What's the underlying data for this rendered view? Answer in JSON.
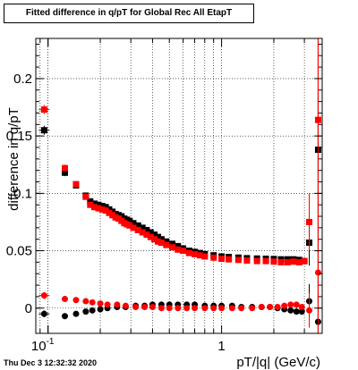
{
  "header": {
    "title": "Fitted difference in q/pT for Global Rec All EtapT"
  },
  "footer": {
    "date": "Thu Dec  3 12:32:32 2020"
  },
  "chart_data": {
    "type": "scatter",
    "title": "Fitted difference in q/pT for Global Rec All EtapT",
    "xlabel": "pT/|q| (GeV/c)",
    "ylabel": "difference in q/pT",
    "xscale": "log",
    "xlim": [
      0.085,
      3.8
    ],
    "ylim": [
      -0.022,
      0.235
    ],
    "x_ticks": [
      0.1,
      1
    ],
    "x_tick_labels": [
      "10^-1",
      "1"
    ],
    "y_ticks": [
      0,
      0.05,
      0.1,
      0.15,
      0.2
    ],
    "y_tick_labels": [
      "0",
      "0.05",
      "0.1",
      "0.15",
      "0.2"
    ],
    "grid": true,
    "colors": {
      "black_series": "#000000",
      "red_series": "#ff0000"
    },
    "series": [
      {
        "color": "#000000",
        "marker": "square",
        "x": [
          0.095,
          0.125,
          0.145,
          0.165,
          0.175,
          0.185,
          0.195,
          0.205,
          0.215,
          0.225,
          0.235,
          0.245,
          0.255,
          0.265,
          0.275,
          0.285,
          0.295,
          0.31,
          0.33,
          0.35,
          0.37,
          0.39,
          0.41,
          0.43,
          0.45,
          0.48,
          0.52,
          0.56,
          0.6,
          0.65,
          0.7,
          0.75,
          0.8,
          0.9,
          1.0,
          1.1,
          1.25,
          1.4,
          1.6,
          1.8,
          2.0,
          2.2,
          2.4,
          2.6,
          2.8,
          3.0,
          3.2,
          3.6
        ],
        "y": [
          0.155,
          0.118,
          0.107,
          0.098,
          0.093,
          0.091,
          0.09,
          0.089,
          0.088,
          0.086,
          0.084,
          0.082,
          0.081,
          0.08,
          0.078,
          0.077,
          0.076,
          0.074,
          0.072,
          0.07,
          0.068,
          0.066,
          0.064,
          0.062,
          0.06,
          0.058,
          0.056,
          0.054,
          0.052,
          0.05,
          0.049,
          0.048,
          0.047,
          0.046,
          0.045,
          0.0445,
          0.044,
          0.0435,
          0.0432,
          0.043,
          0.0428,
          0.0425,
          0.0425,
          0.0425,
          0.042,
          0.041,
          0.057,
          0.138
        ],
        "yerr": [
          0.004,
          0.003,
          0.002,
          0.002,
          0.001,
          0.001,
          0.001,
          0.001,
          0.001,
          0.001,
          0.001,
          0.001,
          0.001,
          0.001,
          0.001,
          0.001,
          0.001,
          0.001,
          0.001,
          0.001,
          0.001,
          0.001,
          0.001,
          0.001,
          0.001,
          0.001,
          0.001,
          0.001,
          0.001,
          0.001,
          0.001,
          0.001,
          0.001,
          0.001,
          0.001,
          0.001,
          0.001,
          0.001,
          0.001,
          0.001,
          0.001,
          0.001,
          0.001,
          0.001,
          0.002,
          0.003,
          0.02,
          0.2
        ]
      },
      {
        "color": "#ff0000",
        "marker": "square",
        "x": [
          0.095,
          0.125,
          0.145,
          0.165,
          0.175,
          0.185,
          0.195,
          0.205,
          0.215,
          0.225,
          0.235,
          0.245,
          0.255,
          0.265,
          0.275,
          0.285,
          0.295,
          0.31,
          0.33,
          0.35,
          0.37,
          0.39,
          0.41,
          0.43,
          0.45,
          0.48,
          0.52,
          0.56,
          0.6,
          0.65,
          0.7,
          0.75,
          0.8,
          0.9,
          1.0,
          1.1,
          1.25,
          1.4,
          1.6,
          1.8,
          2.0,
          2.2,
          2.4,
          2.6,
          2.8,
          3.0,
          3.2,
          3.6
        ],
        "y": [
          0.173,
          0.122,
          0.108,
          0.097,
          0.09,
          0.088,
          0.087,
          0.086,
          0.085,
          0.083,
          0.081,
          0.079,
          0.078,
          0.076,
          0.074,
          0.073,
          0.072,
          0.07,
          0.068,
          0.066,
          0.064,
          0.062,
          0.06,
          0.058,
          0.057,
          0.055,
          0.053,
          0.051,
          0.05,
          0.048,
          0.047,
          0.046,
          0.045,
          0.044,
          0.043,
          0.0425,
          0.042,
          0.0415,
          0.041,
          0.041,
          0.0405,
          0.04,
          0.04,
          0.0405,
          0.04,
          0.041,
          0.075,
          0.164
        ],
        "yerr": [
          0.004,
          0.003,
          0.002,
          0.002,
          0.001,
          0.001,
          0.001,
          0.001,
          0.001,
          0.001,
          0.001,
          0.001,
          0.001,
          0.001,
          0.001,
          0.001,
          0.001,
          0.001,
          0.001,
          0.001,
          0.001,
          0.001,
          0.001,
          0.001,
          0.001,
          0.001,
          0.001,
          0.001,
          0.001,
          0.001,
          0.001,
          0.001,
          0.001,
          0.001,
          0.001,
          0.001,
          0.001,
          0.001,
          0.001,
          0.001,
          0.001,
          0.001,
          0.001,
          0.001,
          0.002,
          0.003,
          0.025,
          0.2
        ]
      },
      {
        "color": "#000000",
        "marker": "circle",
        "x": [
          0.095,
          0.125,
          0.145,
          0.165,
          0.18,
          0.2,
          0.22,
          0.25,
          0.28,
          0.32,
          0.36,
          0.4,
          0.45,
          0.5,
          0.56,
          0.63,
          0.7,
          0.8,
          0.9,
          1.0,
          1.15,
          1.3,
          1.5,
          1.7,
          1.9,
          2.1,
          2.3,
          2.5,
          2.7,
          2.9,
          3.2,
          3.6
        ],
        "y": [
          -0.005,
          -0.007,
          -0.005,
          -0.003,
          -0.002,
          -0.001,
          0.0,
          0.001,
          0.001,
          0.002,
          0.002,
          0.003,
          0.003,
          0.003,
          0.003,
          0.003,
          0.003,
          0.002,
          0.002,
          0.002,
          0.002,
          0.001,
          0.001,
          0.001,
          0.001,
          0.0,
          -0.001,
          -0.002,
          -0.003,
          -0.003,
          0.006,
          -0.012
        ],
        "yerr": [
          0.003,
          0.002,
          0.001,
          0.001,
          0.001,
          0.001,
          0.001,
          0.001,
          0.001,
          0.001,
          0.001,
          0.001,
          0.001,
          0.001,
          0.001,
          0.001,
          0.001,
          0.001,
          0.001,
          0.001,
          0.001,
          0.001,
          0.001,
          0.001,
          0.001,
          0.001,
          0.001,
          0.001,
          0.001,
          0.002,
          0.015,
          0.2
        ]
      },
      {
        "color": "#ff0000",
        "marker": "circle",
        "x": [
          0.095,
          0.125,
          0.145,
          0.165,
          0.18,
          0.2,
          0.22,
          0.25,
          0.28,
          0.32,
          0.36,
          0.4,
          0.45,
          0.5,
          0.56,
          0.63,
          0.7,
          0.8,
          0.9,
          1.0,
          1.15,
          1.3,
          1.5,
          1.7,
          1.9,
          2.1,
          2.3,
          2.5,
          2.7,
          2.9,
          3.2,
          3.6
        ],
        "y": [
          0.011,
          0.008,
          0.007,
          0.006,
          0.005,
          0.004,
          0.003,
          0.003,
          0.002,
          0.001,
          0.001,
          0.001,
          0.0,
          0.0,
          0.0,
          0.0,
          0.0,
          0.0,
          0.0,
          0.0,
          0.0,
          0.0,
          0.0,
          0.001,
          0.001,
          0.001,
          0.002,
          0.003,
          0.003,
          0.001,
          -0.002,
          0.031
        ],
        "yerr": [
          0.003,
          0.002,
          0.001,
          0.001,
          0.001,
          0.001,
          0.001,
          0.001,
          0.001,
          0.001,
          0.001,
          0.001,
          0.001,
          0.001,
          0.001,
          0.001,
          0.001,
          0.001,
          0.001,
          0.001,
          0.001,
          0.001,
          0.001,
          0.001,
          0.001,
          0.001,
          0.001,
          0.001,
          0.001,
          0.002,
          0.015,
          0.2
        ]
      }
    ]
  }
}
